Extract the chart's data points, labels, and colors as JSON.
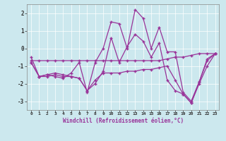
{
  "xlabel": "Windchill (Refroidissement éolien,°C)",
  "xlim": [
    -0.5,
    23.5
  ],
  "ylim": [
    -3.5,
    2.5
  ],
  "yticks": [
    -3,
    -2,
    -1,
    0,
    1,
    2
  ],
  "xticks": [
    0,
    1,
    2,
    3,
    4,
    5,
    6,
    7,
    8,
    9,
    10,
    11,
    12,
    13,
    14,
    15,
    16,
    17,
    18,
    19,
    20,
    21,
    22,
    23
  ],
  "background_color": "#cce8ee",
  "line_color": "#993399",
  "line_width": 0.9,
  "marker": "+",
  "markersize": 3.5,
  "markeredgewidth": 1.0,
  "series": [
    [
      -0.7,
      -0.7,
      -0.7,
      -0.7,
      -0.7,
      -0.7,
      -0.7,
      -0.7,
      -0.7,
      -0.7,
      -0.7,
      -0.7,
      -0.7,
      -0.7,
      -0.7,
      -0.7,
      -0.7,
      -0.6,
      -0.5,
      -0.5,
      -0.4,
      -0.3,
      -0.3,
      -0.3
    ],
    [
      -0.8,
      -1.6,
      -1.6,
      -1.5,
      -1.6,
      -1.6,
      -1.7,
      -2.4,
      -1.8,
      -1.4,
      -1.4,
      -1.4,
      -1.3,
      -1.3,
      -1.2,
      -1.2,
      -1.1,
      -1.0,
      -1.8,
      -2.6,
      -3.1,
      -2.0,
      -1.0,
      -0.3
    ],
    [
      -0.5,
      -1.6,
      -1.5,
      -1.6,
      -1.7,
      -1.4,
      -0.8,
      -2.5,
      -0.8,
      0.0,
      1.5,
      1.4,
      0.0,
      2.2,
      1.7,
      0.0,
      1.2,
      -0.2,
      -0.2,
      -2.5,
      -3.0,
      -1.9,
      -0.6,
      -0.3
    ],
    [
      -0.8,
      -1.6,
      -1.5,
      -1.4,
      -1.5,
      -1.6,
      -1.7,
      -2.4,
      -2.0,
      -1.3,
      0.6,
      -0.8,
      0.1,
      0.8,
      0.4,
      -0.5,
      0.3,
      -1.8,
      -2.4,
      -2.6,
      -3.1,
      -1.9,
      -0.7,
      -0.3
    ]
  ]
}
